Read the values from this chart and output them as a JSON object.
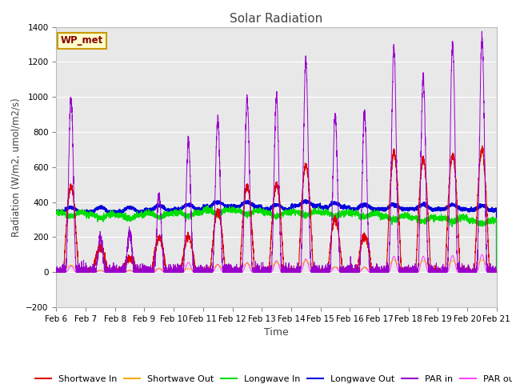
{
  "title": "Solar Radiation",
  "xlabel": "Time",
  "ylabel": "Radiation (W/m2, umol/m2/s)",
  "ylim": [
    -200,
    1400
  ],
  "yticks": [
    -200,
    0,
    200,
    400,
    600,
    800,
    1000,
    1200,
    1400
  ],
  "date_labels": [
    "Feb 6",
    "Feb 7",
    "Feb 8",
    "Feb 9",
    "Feb 10",
    "Feb 11",
    "Feb 12",
    "Feb 13",
    "Feb 14",
    "Feb 15",
    "Feb 16",
    "Feb 17",
    "Feb 18",
    "Feb 19",
    "Feb 20",
    "Feb 21"
  ],
  "colors": {
    "shortwave_in": "#dd0000",
    "shortwave_out": "#ffaa00",
    "longwave_in": "#00dd00",
    "longwave_out": "#0000dd",
    "par_in": "#9900cc",
    "par_out": "#ff44ff"
  },
  "legend_labels": [
    "Shortwave In",
    "Shortwave Out",
    "Longwave In",
    "Longwave Out",
    "PAR in",
    "PAR out"
  ],
  "wp_met_box": {
    "text": "WP_met",
    "facecolor": "#ffffcc",
    "edgecolor": "#cc9900",
    "textcolor": "#880000"
  },
  "fig_facecolor": "#ffffff",
  "axes_facecolor": "#e8e8e8",
  "grid_color": "#ffffff",
  "n_days": 15,
  "pts_per_day": 288,
  "day_peaks_sw": [
    490,
    140,
    80,
    190,
    200,
    350,
    490,
    500,
    610,
    300,
    210,
    680,
    640,
    670,
    700
  ],
  "day_peaks_so": [
    40,
    10,
    10,
    20,
    20,
    40,
    50,
    55,
    65,
    30,
    25,
    70,
    65,
    65,
    70
  ],
  "base_lw_in": [
    340,
    330,
    325,
    335,
    340,
    355,
    350,
    340,
    345,
    340,
    335,
    320,
    310,
    310,
    295
  ],
  "base_lw_out": [
    345,
    345,
    345,
    355,
    360,
    375,
    375,
    360,
    380,
    370,
    360,
    360,
    360,
    360,
    355
  ],
  "day_peaks_par": [
    990,
    200,
    215,
    435,
    735,
    870,
    985,
    995,
    1200,
    895,
    905,
    1280,
    1110,
    1310,
    1340
  ],
  "day_peaks_po": [
    35,
    10,
    10,
    22,
    55,
    45,
    55,
    65,
    75,
    30,
    30,
    90,
    90,
    95,
    100
  ]
}
